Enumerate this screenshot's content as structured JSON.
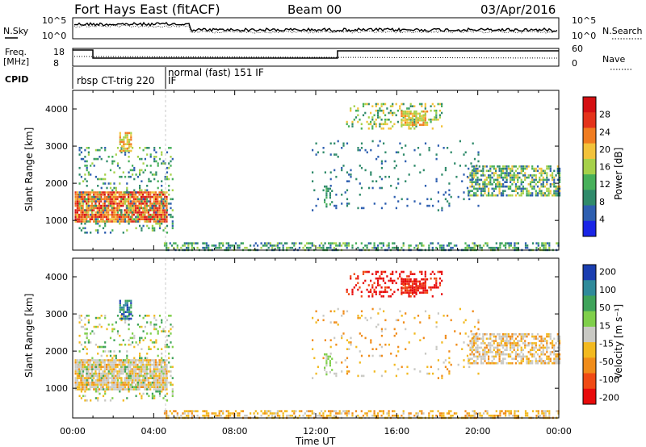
{
  "header": {
    "station": "Fort Hays East (fitACF)",
    "beam": "Beam 00",
    "date": "03/Apr/2016"
  },
  "noise_panel": {
    "left_label": "N.Sky",
    "right_label": "N.Search",
    "ticks": [
      "10^5",
      "10^0"
    ]
  },
  "freq_panel": {
    "left_label_1": "Freq.",
    "left_label_2": "[MHz]",
    "left_ticks": [
      "18",
      "8"
    ],
    "right_label": "Nave",
    "right_ticks": [
      "60",
      "0"
    ]
  },
  "cpid": {
    "label": "CPID",
    "mode_1": "rbsp CT-trig 220",
    "mode_1_tail": "IF",
    "mode_2": "normal (fast) 151 IF"
  },
  "colors": {
    "power": [
      "#1a25e6",
      "#2e5fb0",
      "#2f8a6a",
      "#47b05a",
      "#a6d14a",
      "#f2c23a",
      "#f07c20",
      "#e4321a",
      "#d40f12"
    ],
    "velocity": [
      "#e80b0b",
      "#f04a14",
      "#f08c1a",
      "#f2b91f",
      "#c9c9c4",
      "#7fcf4a",
      "#3fa35a",
      "#2f8a9a",
      "#1a3eb0"
    ]
  },
  "chart_data": [
    {
      "type": "heatmap",
      "name": "power",
      "ylabel": "Slant Range [km]",
      "xlabel": "Time UT",
      "xlim": [
        0,
        24
      ],
      "ylim": [
        200,
        4500
      ],
      "yticks": [
        "1000",
        "2000",
        "3000",
        "4000"
      ],
      "xticks": [
        "00:00",
        "04:00",
        "08:00",
        "12:00",
        "16:00",
        "20:00",
        "00:00"
      ],
      "colorbar": {
        "label": "Power [dB]",
        "ticks": [
          "4",
          "8",
          "12",
          "16",
          "20",
          "24",
          "28"
        ],
        "range": [
          0,
          32
        ]
      }
    },
    {
      "type": "heatmap",
      "name": "velocity",
      "ylabel": "Slant Range [km]",
      "xlabel": "Time UT",
      "xlim": [
        0,
        24
      ],
      "ylim": [
        200,
        4500
      ],
      "yticks": [
        "1000",
        "2000",
        "3000",
        "4000"
      ],
      "xticks": [
        "00:00",
        "04:00",
        "08:00",
        "12:00",
        "16:00",
        "20:00",
        "00:00"
      ],
      "colorbar": {
        "label": "Velocity [m s⁻¹]",
        "ticks": [
          "200",
          "100",
          "50",
          "15",
          "-15",
          "-50",
          "-100",
          "-200"
        ]
      }
    }
  ]
}
